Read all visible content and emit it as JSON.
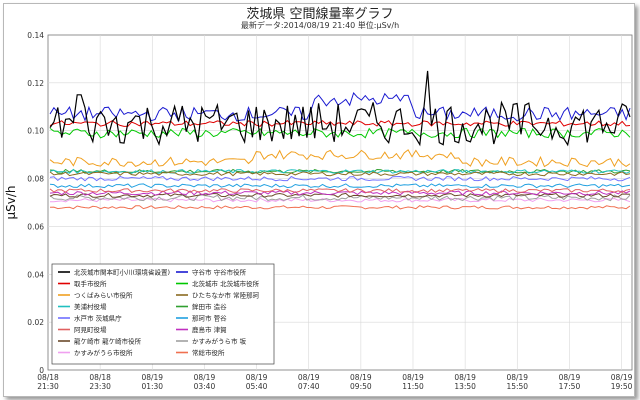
{
  "chart_data": {
    "type": "line",
    "title": "茨城県 空間線量率グラフ",
    "subtitle": "最新データ:2014/08/19 21:40 単位:μSv/h",
    "ylabel": "μSv/h",
    "xlabel": "",
    "ylim": [
      0,
      0.14
    ],
    "yticks": [
      "0",
      "0.02",
      "0.04",
      "0.06",
      "0.08",
      "0.10",
      "0.12",
      "0.14"
    ],
    "grid": true,
    "legend_position": "bottom-left",
    "x_ticks": [
      {
        "date": "08/18",
        "time": "21:30"
      },
      {
        "date": "08/18",
        "time": "23:30"
      },
      {
        "date": "08/19",
        "time": "01:30"
      },
      {
        "date": "08/19",
        "time": "03:40"
      },
      {
        "date": "08/19",
        "time": "05:40"
      },
      {
        "date": "08/19",
        "time": "07:40"
      },
      {
        "date": "08/19",
        "time": "09:50"
      },
      {
        "date": "08/19",
        "time": "11:50"
      },
      {
        "date": "08/19",
        "time": "13:50"
      },
      {
        "date": "08/19",
        "time": "15:50"
      },
      {
        "date": "08/19",
        "time": "17:50"
      },
      {
        "date": "08/19",
        "time": "19:50"
      }
    ],
    "series": [
      {
        "name": "北茨城市関本町小川(環境省設置)",
        "color": "#000000",
        "base": 0.103,
        "noise": 0.009,
        "peaks": [
          [
            0.65,
            0.125
          ],
          [
            0.05,
            0.115
          ]
        ]
      },
      {
        "name": "守谷市 守谷市役所",
        "color": "#1a1ad0",
        "base": 0.107,
        "noise": 0.003,
        "bump": [
          0.45,
          0.63,
          0.006
        ]
      },
      {
        "name": "取手市役所",
        "color": "#e00000",
        "base": 0.103,
        "noise": 0.0012
      },
      {
        "name": "北茨城市 北茨城市役所",
        "color": "#00c800",
        "base": 0.099,
        "noise": 0.002
      },
      {
        "name": "つくばみらい市役所",
        "color": "#f0a020",
        "base": 0.087,
        "noise": 0.002,
        "bump": [
          0.35,
          0.7,
          0.003
        ]
      },
      {
        "name": "ひたちなか市 常陸那珂",
        "color": "#8a6a20",
        "base": 0.082,
        "noise": 0.0008
      },
      {
        "name": "美浦村役場",
        "color": "#20c0c0",
        "base": 0.083,
        "noise": 0.0008
      },
      {
        "name": "鉾田市 造谷",
        "color": "#30a030",
        "base": 0.083,
        "noise": 0.0008
      },
      {
        "name": "水戸市 茨城県庁",
        "color": "#7070ff",
        "base": 0.08,
        "noise": 0.0009
      },
      {
        "name": "那珂市 菅谷",
        "color": "#20a0e0",
        "base": 0.077,
        "noise": 0.0008
      },
      {
        "name": "阿見町役場",
        "color": "#e06060",
        "base": 0.075,
        "noise": 0.0008
      },
      {
        "name": "鹿島市 津賀",
        "color": "#c030c0",
        "base": 0.074,
        "noise": 0.0009
      },
      {
        "name": "龍ケ崎市 龍ケ崎市役所",
        "color": "#6a4a2a",
        "base": 0.073,
        "noise": 0.0008
      },
      {
        "name": "かすみがうら市 坂",
        "color": "#a0a0a0",
        "base": 0.072,
        "noise": 0.0012
      },
      {
        "name": "かすみがうら市役所",
        "color": "#f0a0f0",
        "base": 0.071,
        "noise": 0.0008
      },
      {
        "name": "常総市役所",
        "color": "#f07050",
        "base": 0.068,
        "noise": 0.0007
      }
    ]
  }
}
